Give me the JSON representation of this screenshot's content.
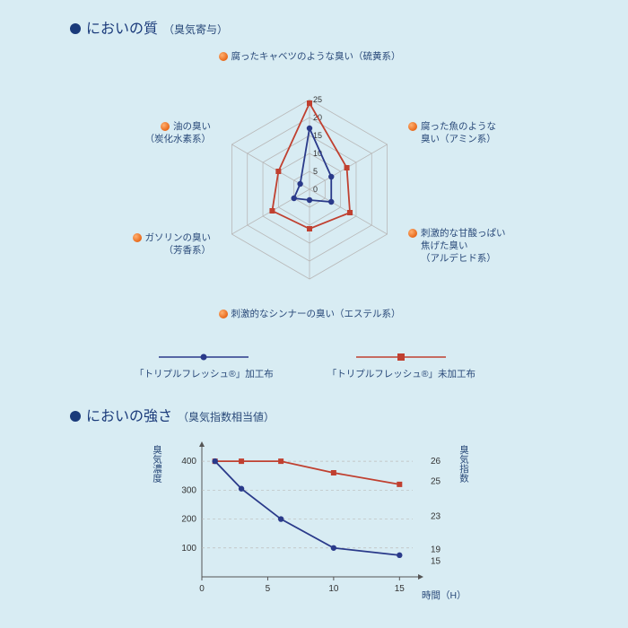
{
  "colors": {
    "bg": "#d8ecf3",
    "bullet": "#1a3a7a",
    "text_nav": "#2a4a7a",
    "series_a": "#2a3a8a",
    "series_b": "#c04030",
    "grid": "#b8b8b8",
    "axis": "#888888",
    "orange": "#e8681a"
  },
  "section1": {
    "title": "においの質",
    "subtitle": "（臭気寄与）",
    "radar": {
      "axes": [
        {
          "label_l1": "腐ったキャベツのような臭い（硫黄系）"
        },
        {
          "label_l1": "腐った魚のような",
          "label_l2": "臭い（アミン系）"
        },
        {
          "label_l1": "刺激的な甘酸っぱい",
          "label_l2": "焦げた臭い",
          "label_l3": "（アルデヒド系）"
        },
        {
          "label_l1": "刺激的なシンナーの臭い（エステル系）"
        },
        {
          "label_l1": "ガソリンの臭い",
          "label_l2": "（芳香系）"
        },
        {
          "label_l1": "油の臭い",
          "label_l2": "（炭化水素系）"
        }
      ],
      "rings": [
        5,
        10,
        15,
        20,
        25
      ],
      "max": 25,
      "tick_labels": [
        "0",
        "5",
        "10",
        "15",
        "20",
        "25"
      ],
      "series_a": [
        17,
        7,
        7,
        3,
        5,
        3
      ],
      "series_b": [
        24,
        12,
        13,
        11,
        12,
        10
      ]
    },
    "legend": {
      "a": "「トリプルフレッシュ®」加工布",
      "b": "「トリプルフレッシュ®」未加工布"
    }
  },
  "section2": {
    "title": "においの強さ",
    "subtitle": "（臭気指数相当値）",
    "chart": {
      "x": [
        1,
        3,
        6,
        10,
        15
      ],
      "xticks": [
        0,
        5,
        10,
        15
      ],
      "xlabel": "時間（H）",
      "y1_label": "臭気濃度",
      "y1_ticks": [
        100,
        200,
        300,
        400
      ],
      "y1_range": [
        0,
        450
      ],
      "y2_label": "臭気指数",
      "y2_annot": [
        26,
        25,
        23,
        19,
        15
      ],
      "series_a_y": [
        400,
        305,
        200,
        100,
        75
      ],
      "series_b_y": [
        400,
        400,
        400,
        360,
        320
      ]
    }
  }
}
